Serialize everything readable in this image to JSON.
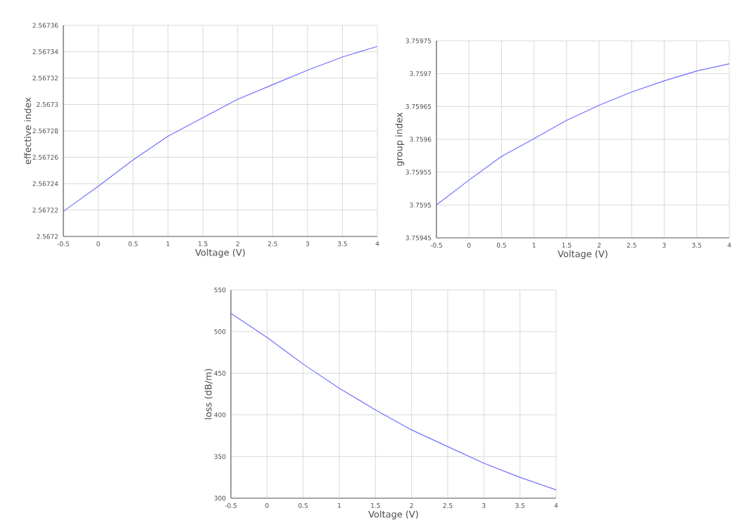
{
  "chart_data": [
    {
      "type": "line",
      "xlabel": "Voltage (V)",
      "ylabel": "effective index",
      "color": "#6f6fff",
      "grid": true,
      "x": [
        -0.5,
        0,
        0.5,
        1,
        1.5,
        2,
        2.5,
        3,
        3.5,
        4
      ],
      "values": [
        2.567219,
        2.567238,
        2.567258,
        2.567276,
        2.56729,
        2.567304,
        2.567315,
        2.567326,
        2.567336,
        2.567344
      ],
      "xlim": [
        -0.5,
        4
      ],
      "ylim": [
        2.5672,
        2.56736
      ],
      "xticks": [
        -0.5,
        0,
        0.5,
        1,
        1.5,
        2,
        2.5,
        3,
        3.5,
        4
      ],
      "yticks": [
        2.5672,
        2.56722,
        2.56724,
        2.56726,
        2.56728,
        2.5673,
        2.56732,
        2.56734,
        2.56736
      ]
    },
    {
      "type": "line",
      "xlabel": "Voltage (V)",
      "ylabel": "group index",
      "color": "#6f6fff",
      "grid": true,
      "x": [
        -0.5,
        0,
        0.5,
        1,
        1.5,
        2,
        2.5,
        3,
        3.5,
        4
      ],
      "values": [
        3.7595,
        3.759538,
        3.759574,
        3.759601,
        3.759629,
        3.759652,
        3.759672,
        3.759689,
        3.759704,
        3.759715
      ],
      "xlim": [
        -0.5,
        4
      ],
      "ylim": [
        3.75945,
        3.75975
      ],
      "xticks": [
        -0.5,
        0,
        0.5,
        1,
        1.5,
        2,
        2.5,
        3,
        3.5,
        4
      ],
      "yticks": [
        3.75945,
        3.7595,
        3.75955,
        3.7596,
        3.75965,
        3.7597,
        3.75975
      ]
    },
    {
      "type": "line",
      "xlabel": "Voltage (V)",
      "ylabel": "loss (dB/m)",
      "color": "#6f6fff",
      "grid": true,
      "x": [
        -0.5,
        0,
        0.5,
        1,
        1.5,
        2,
        2.5,
        3,
        3.5,
        4
      ],
      "values": [
        522,
        493,
        461,
        432,
        406,
        382,
        362,
        342,
        325,
        310
      ],
      "xlim": [
        -0.5,
        4
      ],
      "ylim": [
        300,
        550
      ],
      "xticks": [
        -0.5,
        0,
        0.5,
        1,
        1.5,
        2,
        2.5,
        3,
        3.5,
        4
      ],
      "yticks": [
        300,
        350,
        400,
        450,
        500,
        550
      ]
    }
  ]
}
